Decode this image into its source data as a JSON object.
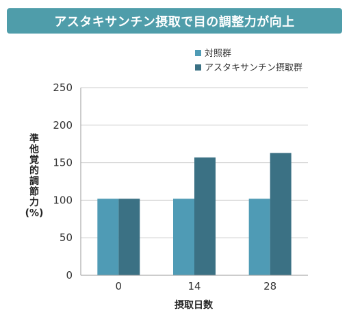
{
  "header": {
    "title": "アスタキサンチン摂取で目の調整力が向上"
  },
  "colors": {
    "banner": "#4f9daa",
    "control": "#4f9bb5",
    "treatment": "#3b7184",
    "grid": "#cccccc"
  },
  "chart_data": {
    "type": "bar",
    "categories": [
      "0",
      "14",
      "28"
    ],
    "series": [
      {
        "name": "対照群",
        "values": [
          102,
          102,
          102
        ]
      },
      {
        "name": "アスタキサンチン摂取群",
        "values": [
          102,
          157,
          163
        ]
      }
    ],
    "xlabel": "摂取日数",
    "ylabel_chars": [
      "準",
      "他",
      "覚",
      "的",
      "調",
      "節",
      "力",
      "(%)"
    ],
    "ylim": [
      0,
      250
    ],
    "yticks": [
      "0",
      "50",
      "100",
      "150",
      "200",
      "250"
    ],
    "grid": true,
    "legend_position": "top-right"
  }
}
